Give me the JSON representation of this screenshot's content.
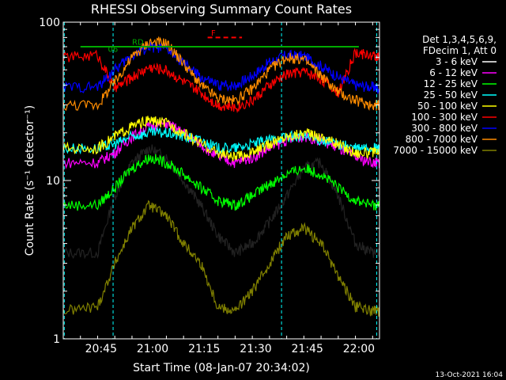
{
  "chart_data": {
    "type": "line",
    "title": "RHESSI Observing Summary Count Rates",
    "xlabel": "Start Time (08-Jan-07 20:34:02)",
    "ylabel": "Count Rate (s⁻¹ detector⁻¹)",
    "yscale": "log",
    "ylim": [
      1,
      100
    ],
    "xlim_minutes": [
      0,
      92
    ],
    "x_ticks": [
      {
        "label": "20:45",
        "minute": 11
      },
      {
        "label": "21:00",
        "minute": 26
      },
      {
        "label": "21:15",
        "minute": 41
      },
      {
        "label": "21:30",
        "minute": 56
      },
      {
        "label": "21:45",
        "minute": 71
      },
      {
        "label": "22:00",
        "minute": 86
      }
    ],
    "y_ticks": [
      {
        "label": "1",
        "value": 1
      },
      {
        "label": "10",
        "value": 10
      },
      {
        "label": "100",
        "value": 100
      }
    ],
    "legend_header": [
      "Det 1,3,4,5,6,9,",
      "FDecim 1, Att 0"
    ],
    "legend_position": "right",
    "series": [
      {
        "name": "3 - 6 keV",
        "color": "#000000",
        "x": [
          0,
          10,
          15,
          20,
          25,
          30,
          35,
          40,
          45,
          50,
          55,
          60,
          65,
          70,
          75,
          80,
          85,
          90,
          92
        ],
        "y": [
          3.5,
          3.5,
          8,
          13,
          16,
          14,
          10,
          7,
          4.5,
          3.5,
          4,
          5.5,
          8,
          12,
          13,
          8,
          4,
          3.5,
          3.5
        ]
      },
      {
        "name": "6 - 12 keV",
        "color": "#ff00ff",
        "x": [
          0,
          10,
          15,
          20,
          25,
          30,
          35,
          40,
          45,
          50,
          55,
          60,
          65,
          70,
          75,
          80,
          85,
          90,
          92
        ],
        "y": [
          13,
          13,
          15,
          19,
          22,
          23,
          20,
          17,
          14,
          13,
          14,
          16,
          18,
          19,
          18,
          16,
          14,
          13,
          13
        ]
      },
      {
        "name": "12 - 25 keV",
        "color": "#00ff00",
        "x": [
          0,
          10,
          15,
          20,
          25,
          30,
          35,
          40,
          45,
          50,
          55,
          60,
          65,
          70,
          75,
          80,
          85,
          90,
          92
        ],
        "y": [
          7,
          7,
          9,
          12,
          14,
          13,
          11,
          9,
          7.5,
          7,
          8,
          9.5,
          11,
          12,
          11,
          9,
          7.5,
          7,
          7
        ]
      },
      {
        "name": "25 - 50 keV",
        "color": "#00ffff",
        "x": [
          0,
          10,
          15,
          20,
          25,
          30,
          35,
          40,
          45,
          50,
          55,
          60,
          65,
          70,
          75,
          80,
          85,
          90,
          92
        ],
        "y": [
          16,
          16,
          17,
          19,
          20,
          20,
          19,
          18,
          16,
          16,
          17,
          18,
          19,
          19,
          18,
          17,
          16,
          16,
          16
        ]
      },
      {
        "name": "50 - 100 keV",
        "color": "#ffff00",
        "x": [
          0,
          10,
          15,
          20,
          25,
          30,
          35,
          40,
          45,
          50,
          55,
          60,
          65,
          70,
          75,
          80,
          85,
          90,
          92
        ],
        "y": [
          16,
          16,
          19,
          22,
          24,
          23,
          20,
          17,
          15,
          14,
          15,
          17,
          19,
          20,
          19,
          17,
          15,
          15,
          15
        ]
      },
      {
        "name": "100 - 300 keV",
        "color": "#ff0000",
        "x": [
          0,
          10,
          15,
          20,
          25,
          30,
          35,
          40,
          45,
          50,
          55,
          60,
          65,
          70,
          75,
          80,
          85,
          90,
          92
        ],
        "y": [
          60,
          62,
          38,
          45,
          52,
          50,
          42,
          36,
          30,
          29,
          32,
          40,
          47,
          49,
          44,
          36,
          64,
          62,
          60
        ]
      },
      {
        "name": "300 - 800 keV",
        "color": "#0000ff",
        "x": [
          0,
          10,
          15,
          20,
          25,
          30,
          35,
          40,
          45,
          50,
          55,
          60,
          65,
          70,
          75,
          80,
          85,
          90,
          92
        ],
        "y": [
          39,
          39,
          50,
          62,
          70,
          68,
          55,
          45,
          40,
          40,
          46,
          56,
          62,
          61,
          53,
          45,
          40,
          39,
          38
        ]
      },
      {
        "name": "800 - 7000 keV",
        "color": "#ff8c00",
        "x": [
          0,
          10,
          15,
          20,
          25,
          30,
          35,
          40,
          45,
          50,
          55,
          60,
          65,
          70,
          75,
          80,
          85,
          90,
          92
        ],
        "y": [
          30,
          30,
          42,
          60,
          75,
          74,
          55,
          40,
          33,
          32,
          38,
          50,
          60,
          58,
          46,
          36,
          32,
          30,
          30
        ]
      },
      {
        "name": "7000 - 15000 keV",
        "color": "#808000",
        "x": [
          0,
          10,
          15,
          20,
          25,
          30,
          35,
          40,
          45,
          50,
          55,
          60,
          65,
          70,
          75,
          80,
          85,
          90,
          92
        ],
        "y": [
          1.5,
          1.6,
          3,
          5,
          7,
          6,
          4,
          3,
          1.6,
          1.5,
          2,
          3,
          4.5,
          5,
          4,
          2.5,
          1.6,
          1.5,
          1.5
        ]
      }
    ],
    "annotations": [
      {
        "text": "RD",
        "color": "#00aa00"
      },
      {
        "text": "F",
        "color": "#ff0000"
      },
      {
        "text": "06",
        "color": "#00aa00"
      }
    ],
    "footer_timestamp": "13-Oct-2021 16:04"
  }
}
